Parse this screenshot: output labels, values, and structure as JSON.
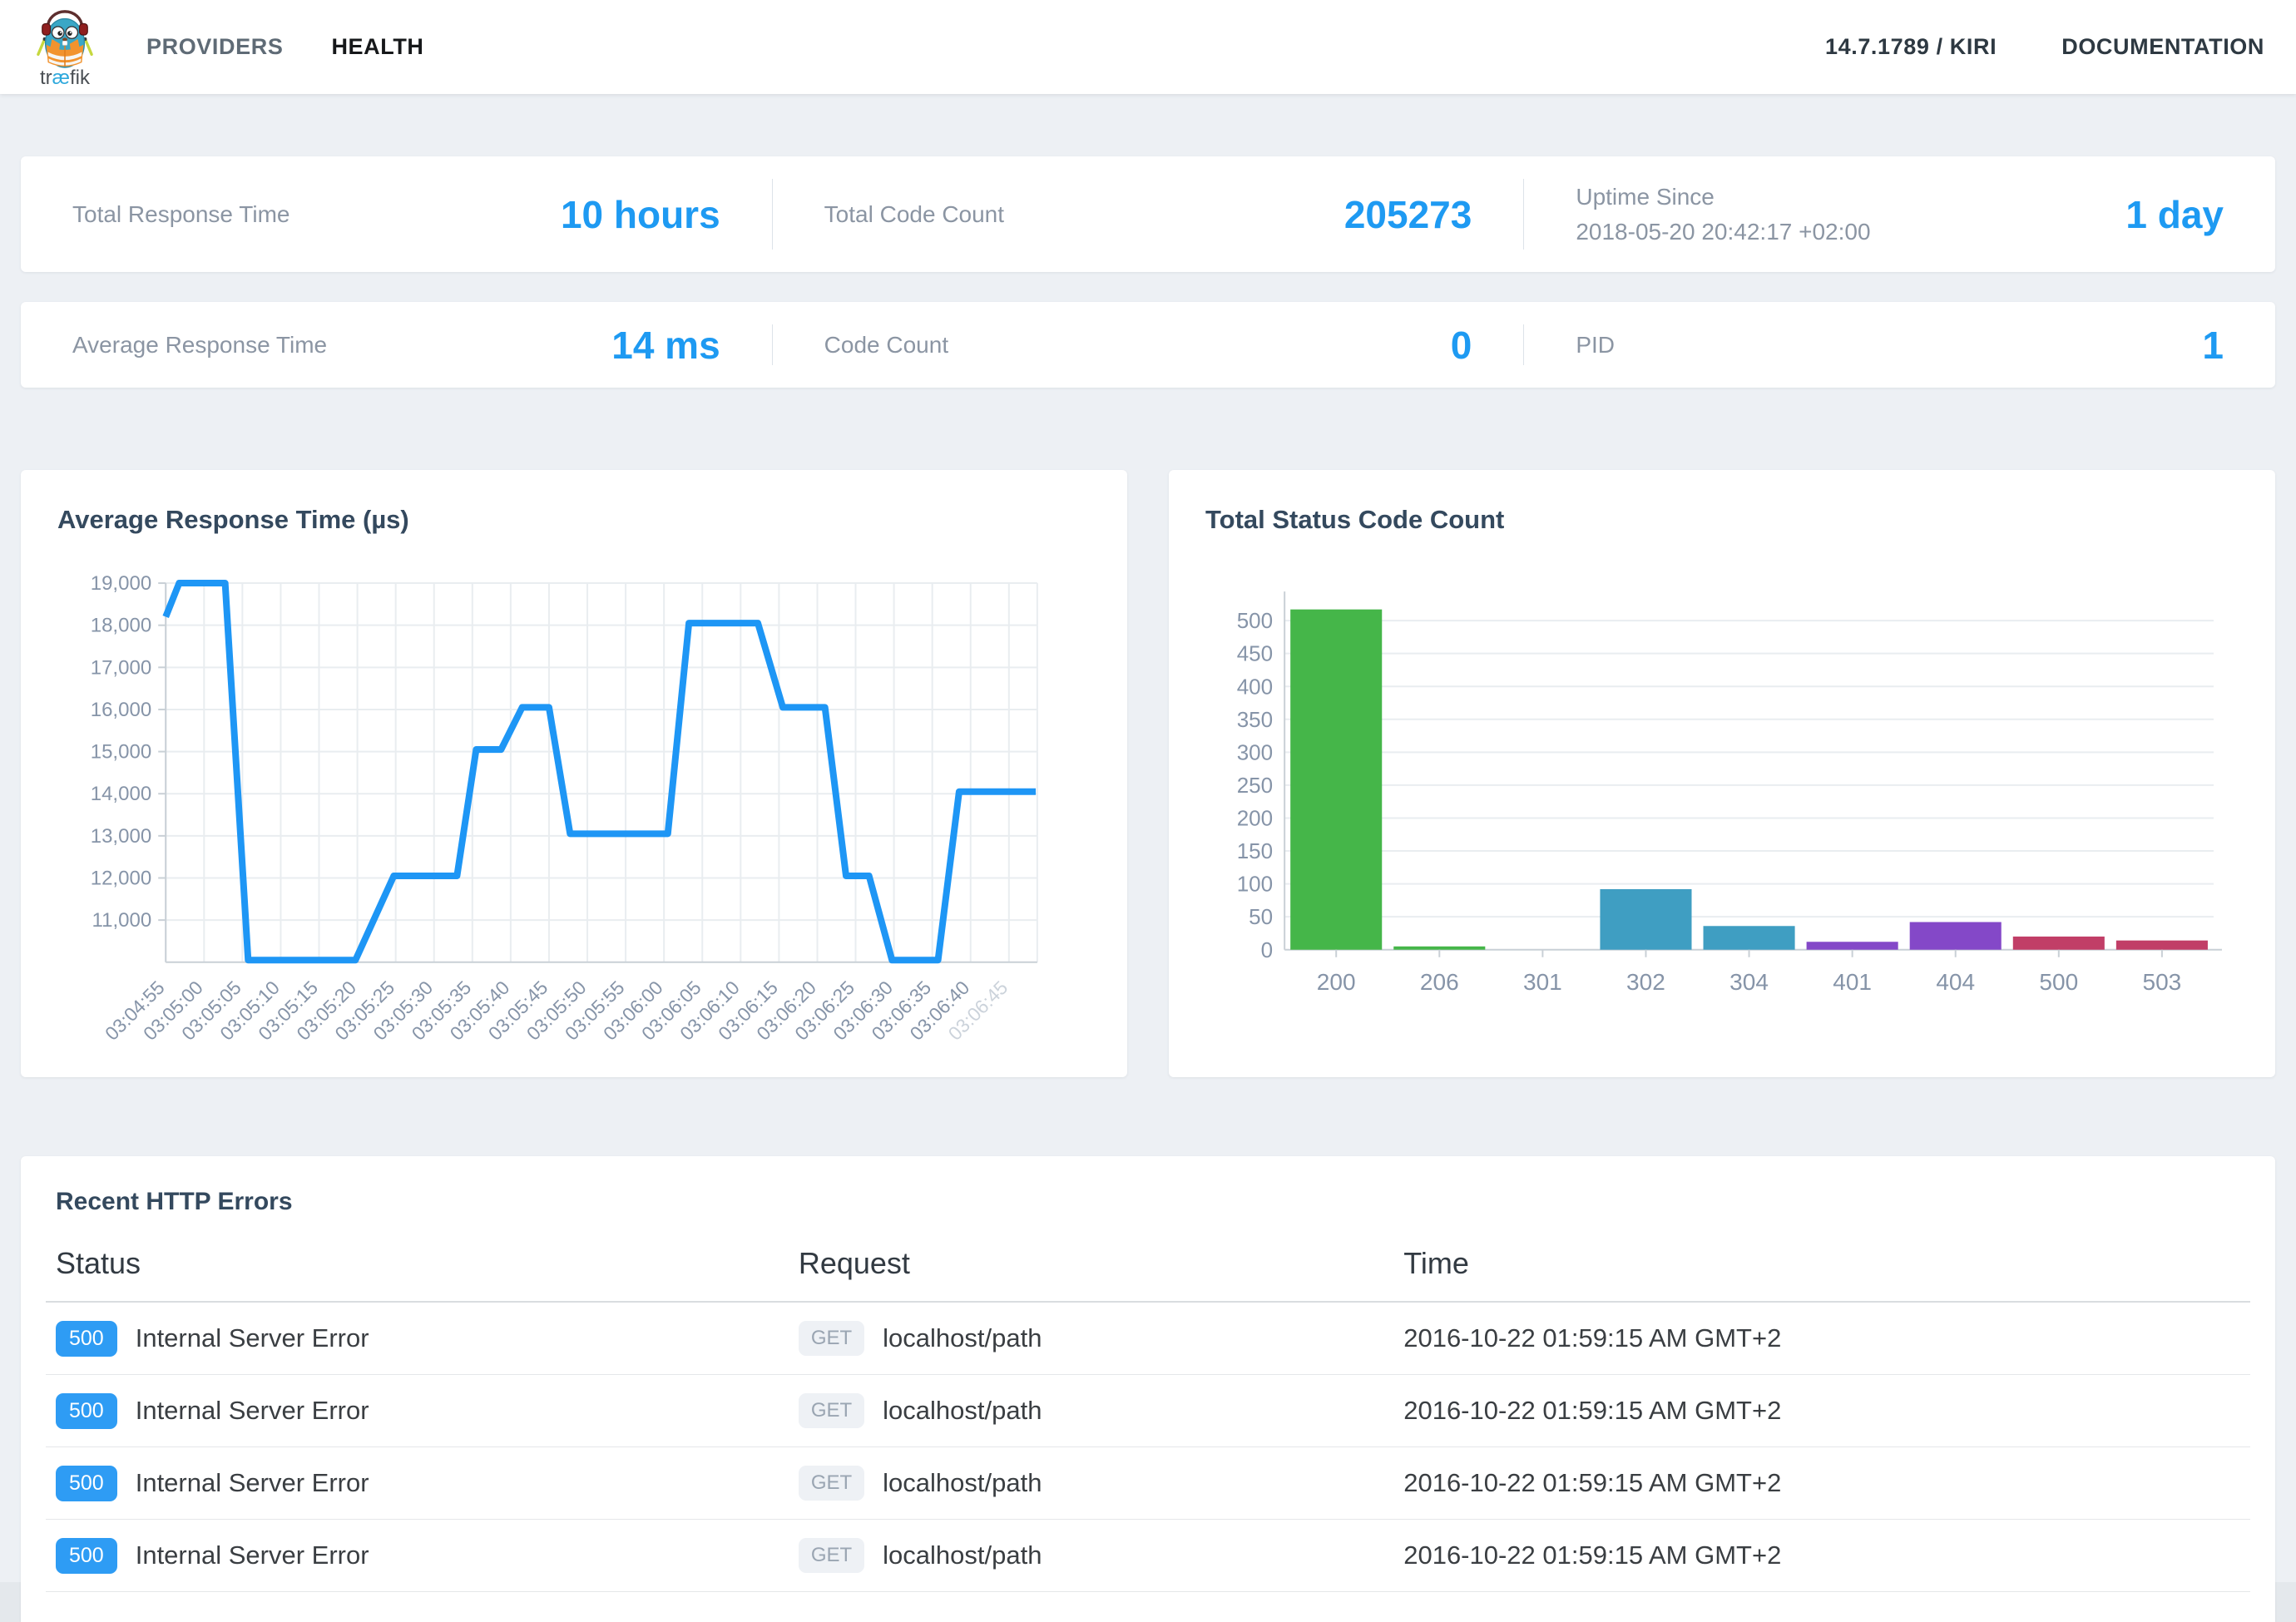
{
  "nav": {
    "logo": {
      "word_prefix": "tr",
      "word_ae": "æ",
      "word_suffix": "fik"
    },
    "links": [
      {
        "label": "PROVIDERS",
        "active": false
      },
      {
        "label": "HEALTH",
        "active": true
      }
    ],
    "version": "14.7.1789 / KIRI",
    "docs": "DOCUMENTATION"
  },
  "stats_row1": [
    {
      "label": "Total Response Time",
      "value": "10 hours"
    },
    {
      "label": "Total Code Count",
      "value": "205273"
    },
    {
      "label": "Uptime Since",
      "sublabel": "2018-05-20 20:42:17 +02:00",
      "value": "1 day"
    }
  ],
  "stats_row2": [
    {
      "label": "Average Response Time",
      "value": "14 ms"
    },
    {
      "label": "Code Count",
      "value": "0"
    },
    {
      "label": "PID",
      "value": "1"
    }
  ],
  "chart_data": [
    {
      "type": "line",
      "title": "Average Response Time (µs)",
      "categories": [
        "03:04:55",
        "03:05:00",
        "03:05:05",
        "03:05:10",
        "03:05:15",
        "03:05:20",
        "03:05:25",
        "03:05:30",
        "03:05:35",
        "03:05:40",
        "03:05:45",
        "03:05:50",
        "03:05:55",
        "03:06:00",
        "03:06:05",
        "03:06:10",
        "03:06:15",
        "03:06:20",
        "03:06:25",
        "03:06:30",
        "03:06:35",
        "03:06:40",
        "03:06:45"
      ],
      "values_at_ticks": [
        18200,
        19000,
        19000,
        10050,
        10050,
        10050,
        12050,
        12050,
        15050,
        16050,
        16050,
        13050,
        13050,
        13050,
        18050,
        18050,
        16050,
        16050,
        12050,
        10050,
        10050,
        14050,
        14050
      ],
      "points": [
        [
          0,
          18200
        ],
        [
          0.35,
          19000
        ],
        [
          1.55,
          19000
        ],
        [
          2.15,
          10050
        ],
        [
          4.95,
          10050
        ],
        [
          5.95,
          12050
        ],
        [
          7.6,
          12050
        ],
        [
          8.1,
          15050
        ],
        [
          8.75,
          15050
        ],
        [
          9.3,
          16050
        ],
        [
          10.0,
          16050
        ],
        [
          10.55,
          13050
        ],
        [
          13.1,
          13050
        ],
        [
          13.65,
          18050
        ],
        [
          15.45,
          18050
        ],
        [
          16.1,
          16050
        ],
        [
          17.2,
          16050
        ],
        [
          17.75,
          12050
        ],
        [
          18.35,
          12050
        ],
        [
          18.95,
          10050
        ],
        [
          20.15,
          10050
        ],
        [
          20.7,
          14050
        ],
        [
          22.7,
          14050
        ]
      ],
      "y_ticks": [
        11000,
        12000,
        13000,
        14000,
        15000,
        16000,
        17000,
        18000,
        19000
      ],
      "ylim": [
        10000,
        19000
      ],
      "grid": true,
      "legend": "none",
      "line_color": "#1e96f5",
      "last_label_faded": true
    },
    {
      "type": "bar",
      "title": "Total Status Code Count",
      "categories": [
        "200",
        "206",
        "301",
        "302",
        "304",
        "401",
        "404",
        "500",
        "503"
      ],
      "values": [
        517,
        5,
        0,
        92,
        36,
        12,
        42,
        20,
        14
      ],
      "bar_colors": [
        "#45b649",
        "#45b649",
        "#45b649",
        "#3f9ec2",
        "#3f9ec2",
        "#8448c8",
        "#8448c8",
        "#c13e67",
        "#c13e67"
      ],
      "y_ticks": [
        0,
        50,
        100,
        150,
        200,
        250,
        300,
        350,
        400,
        450,
        500
      ],
      "ylim": [
        0,
        530
      ],
      "grid": true,
      "legend": "none"
    }
  ],
  "errors_table": {
    "title": "Recent HTTP Errors",
    "columns": [
      "Status",
      "Request",
      "Time"
    ],
    "rows": [
      {
        "code": "500",
        "message": "Internal Server Error",
        "method": "GET",
        "path": "localhost/path",
        "time": "2016-10-22 01:59:15 AM GMT+2"
      },
      {
        "code": "500",
        "message": "Internal Server Error",
        "method": "GET",
        "path": "localhost/path",
        "time": "2016-10-22 01:59:15 AM GMT+2"
      },
      {
        "code": "500",
        "message": "Internal Server Error",
        "method": "GET",
        "path": "localhost/path",
        "time": "2016-10-22 01:59:15 AM GMT+2"
      },
      {
        "code": "500",
        "message": "Internal Server Error",
        "method": "GET",
        "path": "localhost/path",
        "time": "2016-10-22 01:59:15 AM GMT+2"
      }
    ]
  },
  "colors": {
    "accent_blue": "#1e9af2",
    "badge_blue": "#2e9cf4",
    "get_badge_bg": "#eef1f5",
    "get_badge_text": "#9aa5b2",
    "chart_grid": "#e9edf0",
    "chart_axis": "#c9d0d6",
    "chart_label": "#8694a8",
    "chart_label_faded": "#ccd3db"
  }
}
